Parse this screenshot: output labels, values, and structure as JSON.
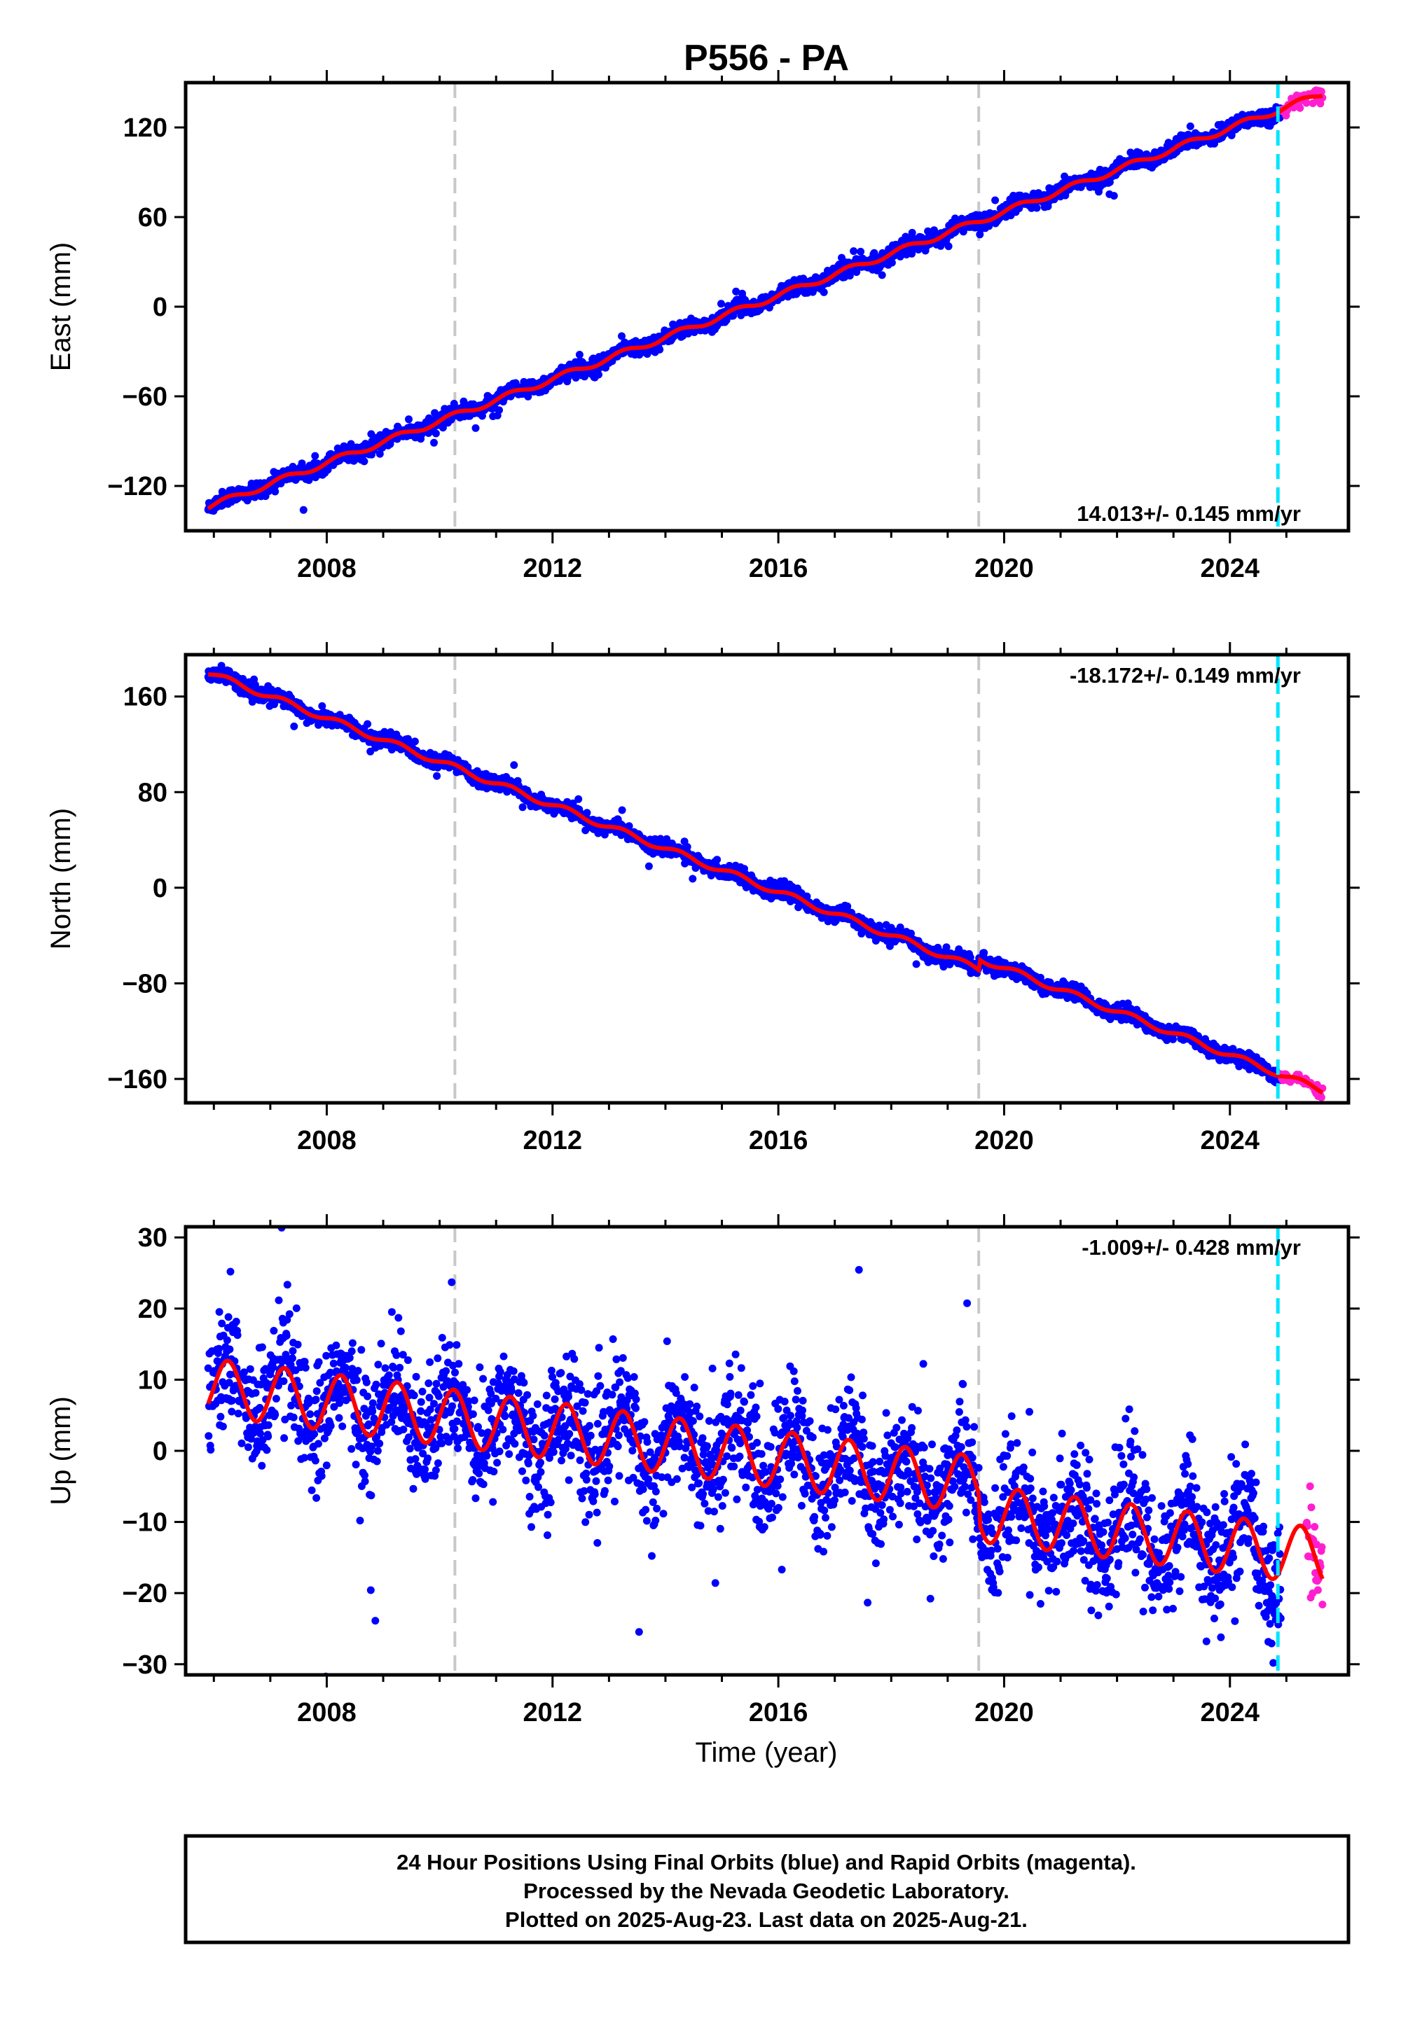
{
  "title": "P556 - PA",
  "colors": {
    "final": "#0000ff",
    "rapid": "#ff1fd0",
    "model": "#ff0000",
    "break_line": "#c8c8c8",
    "rapid_line": "#00e5ff",
    "frame": "#000000"
  },
  "chart_data": [
    {
      "type": "scatter",
      "ylabel": "East (mm)",
      "ylim": [
        -150,
        150
      ],
      "xlim": [
        2005.5,
        2026.1
      ],
      "yticks": [
        -120,
        -60,
        0,
        60,
        120
      ],
      "ytick_labels": [
        "−120",
        "−60",
        "0",
        "60",
        "120"
      ],
      "xticks": [
        2008,
        2012,
        2016,
        2020,
        2024
      ],
      "xtick_labels": [
        "2008",
        "2012",
        "2016",
        "2020",
        "2024"
      ],
      "rate_label": "14.013+/- 0.145 mm/yr",
      "rate_position": "bottom-right",
      "series": [
        {
          "kind": "final",
          "x_range": [
            2005.9,
            2024.9
          ]
        },
        {
          "kind": "rapid",
          "x_range": [
            2024.9,
            2025.64
          ]
        },
        {
          "kind": "model"
        }
      ],
      "model": {
        "start_year": 2005.9,
        "start_value": -134,
        "rate": 14.013,
        "annual_amplitude": 2,
        "offsets": []
      },
      "scatter_sd": 2.5,
      "break_lines": [
        2010.27,
        2019.55
      ],
      "rapid_start_line": 2024.85
    },
    {
      "type": "scatter",
      "ylabel": "North (mm)",
      "ylim": [
        -180,
        195
      ],
      "xlim": [
        2005.5,
        2026.1
      ],
      "yticks": [
        -160,
        -80,
        0,
        80,
        160
      ],
      "ytick_labels": [
        "−160",
        "−80",
        "0",
        "80",
        "160"
      ],
      "xticks": [
        2008,
        2012,
        2016,
        2020,
        2024
      ],
      "xtick_labels": [
        "2008",
        "2012",
        "2016",
        "2020",
        "2024"
      ],
      "rate_label": "-18.172+/- 0.149 mm/yr",
      "rate_position": "top-right",
      "series": [
        {
          "kind": "final",
          "x_range": [
            2005.9,
            2024.9
          ]
        },
        {
          "kind": "rapid",
          "x_range": [
            2024.9,
            2025.64
          ]
        },
        {
          "kind": "model"
        }
      ],
      "model": {
        "start_year": 2005.9,
        "start_value": 180,
        "rate": -18.172,
        "annual_amplitude": 2.5,
        "offsets": [
          [
            2019.55,
            9
          ]
        ]
      },
      "scatter_sd": 3,
      "break_lines": [
        2010.27,
        2019.55
      ],
      "rapid_start_line": 2024.85
    },
    {
      "type": "scatter",
      "xlabel": "Time (year)",
      "ylabel": "Up (mm)",
      "ylim": [
        -31.5,
        31.5
      ],
      "xlim": [
        2005.5,
        2026.1
      ],
      "yticks": [
        -30,
        -20,
        -10,
        0,
        10,
        20,
        30
      ],
      "ytick_labels": [
        "−30",
        "−20",
        "−10",
        "0",
        "10",
        "20",
        "30"
      ],
      "xticks": [
        2008,
        2012,
        2016,
        2020,
        2024
      ],
      "xtick_labels": [
        "2008",
        "2012",
        "2016",
        "2020",
        "2024"
      ],
      "rate_label": "-1.009+/- 0.428 mm/yr",
      "rate_position": "top-right",
      "series": [
        {
          "kind": "final",
          "x_range": [
            2005.9,
            2024.9
          ]
        },
        {
          "kind": "rapid",
          "x_range": [
            2025.35,
            2025.64
          ]
        },
        {
          "kind": "model"
        }
      ],
      "model": {
        "start_year": 2005.9,
        "start_value": 9,
        "rate": -1.009,
        "annual_amplitude": 4,
        "offsets": [
          [
            2019.55,
            -4
          ]
        ]
      },
      "scatter_sd": 4.2,
      "break_lines": [
        2010.27,
        2019.55
      ],
      "rapid_start_line": 2024.85
    }
  ],
  "footer": {
    "line1": "24 Hour Positions Using Final Orbits (blue) and Rapid Orbits (magenta).",
    "line2": "Processed by the Nevada Geodetic Laboratory.",
    "line3": "Plotted on 2025-Aug-23. Last data on 2025-Aug-21."
  }
}
